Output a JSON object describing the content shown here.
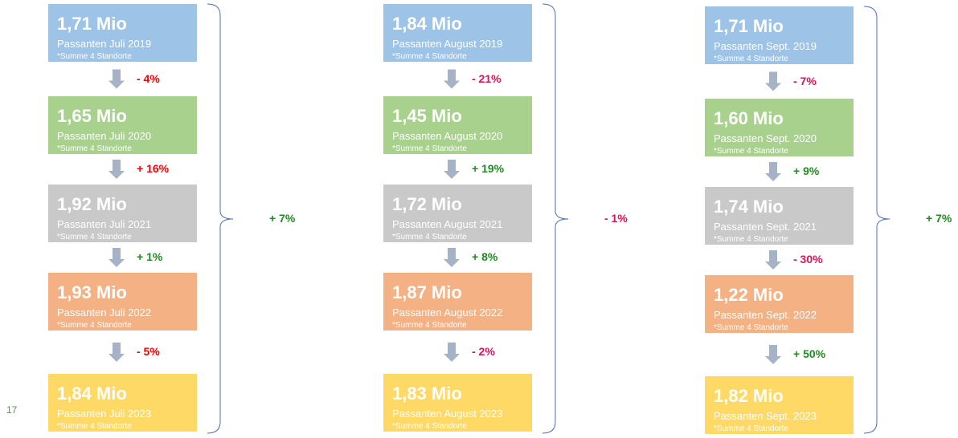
{
  "page_number": "17",
  "columns": [
    {
      "boxes": [
        {
          "value": "1,71 Mio",
          "label": "Passanten Juli 2019",
          "note": "*Summe 4 Standorte",
          "color": "#9dc3e6"
        },
        {
          "value": "1,65 Mio",
          "label": "Passanten Juli 2020",
          "note": "*Summe 4 Standorte",
          "color": "#a9d18e"
        },
        {
          "value": "1,92 Mio",
          "label": "Passanten Juli 2021",
          "note": "*Summe 4 Standorte",
          "color": "#c9c9c9"
        },
        {
          "value": "1,93 Mio",
          "label": "Passanten Juli 2022",
          "note": "*Summe 4 Standorte",
          "color": "#f4b183"
        },
        {
          "value": "1,84 Mio",
          "label": "Passanten Juli 2023",
          "note": "*Summe 4 Standorte",
          "color": "#ffd966"
        }
      ],
      "changes": [
        {
          "text": "- 4%",
          "color": "#ff0000"
        },
        {
          "text": "+ 16%",
          "color": "#ff0000"
        },
        {
          "text": "+ 1%",
          "color": "#218a21"
        },
        {
          "text": "- 5%",
          "color": "#ff0000"
        }
      ],
      "total": {
        "text": "+ 7%",
        "color": "#218a21"
      }
    },
    {
      "boxes": [
        {
          "value": "1,84 Mio",
          "label": "Passanten August 2019",
          "note": "*Summe 4 Standorte",
          "color": "#9dc3e6"
        },
        {
          "value": "1,45 Mio",
          "label": "Passanten August 2020",
          "note": "*Summe 4 Standorte",
          "color": "#a9d18e"
        },
        {
          "value": "1,72 Mio",
          "label": "Passanten August 2021",
          "note": "*Summe 4 Standorte",
          "color": "#c9c9c9"
        },
        {
          "value": "1,87 Mio",
          "label": "Passanten August 2022",
          "note": "*Summe 4 Standorte",
          "color": "#f4b183"
        },
        {
          "value": "1,83 Mio",
          "label": "Passanten August 2023",
          "note": "*Summe 4 Standorte",
          "color": "#ffd966"
        }
      ],
      "changes": [
        {
          "text": "- 21%",
          "color": "#e0105a"
        },
        {
          "text": "+ 19%",
          "color": "#218a21"
        },
        {
          "text": "+ 8%",
          "color": "#218a21"
        },
        {
          "text": "- 2%",
          "color": "#e0105a"
        }
      ],
      "total": {
        "text": "- 1%",
        "color": "#e0105a"
      }
    },
    {
      "boxes": [
        {
          "value": "1,71 Mio",
          "label": "Passanten Sept. 2019",
          "note": "*Summe 4 Standorte",
          "color": "#9dc3e6"
        },
        {
          "value": "1,60 Mio",
          "label": "Passanten Sept. 2020",
          "note": "*Summe 4 Standorte",
          "color": "#a9d18e"
        },
        {
          "value": "1,74 Mio",
          "label": "Passanten Sept. 2021",
          "note": "*Summe 4 Standorte",
          "color": "#c9c9c9"
        },
        {
          "value": "1,22 Mio",
          "label": "Passanten Sept. 2022",
          "note": "*Summe 4 Standorte",
          "color": "#f4b183"
        },
        {
          "value": "1,82 Mio",
          "label": "Passanten Sept. 2023",
          "note": "*Summe 4 Standorte",
          "color": "#ffd966"
        }
      ],
      "changes": [
        {
          "text": "- 7%",
          "color": "#e0105a"
        },
        {
          "text": "+ 9%",
          "color": "#218a21"
        },
        {
          "text": "- 30%",
          "color": "#e0105a"
        },
        {
          "text": "+ 50%",
          "color": "#218a21"
        }
      ],
      "total": {
        "text": "+ 7%",
        "color": "#218a21"
      }
    }
  ]
}
